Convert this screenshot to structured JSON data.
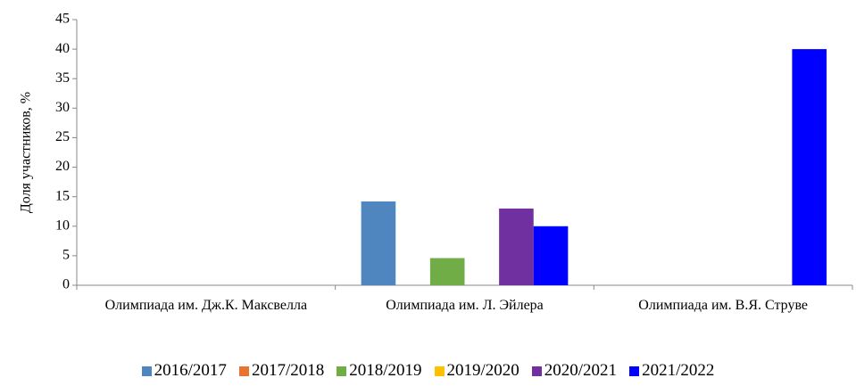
{
  "chart_data": {
    "type": "bar",
    "y_label": "Доля участников, %",
    "categories": [
      "Олимпиада им. Дж.К. Максвелла",
      "Олимпиада им. Л. Эйлера",
      "Олимпиада им. В.Я. Струве"
    ],
    "series": [
      {
        "name": "2016/2017",
        "color": "#4f86c0",
        "values": [
          0,
          14.2,
          0
        ]
      },
      {
        "name": "2017/2018",
        "color": "#e8742f",
        "values": [
          0,
          0,
          0
        ]
      },
      {
        "name": "2018/2019",
        "color": "#70ad47",
        "values": [
          0,
          4.6,
          0
        ]
      },
      {
        "name": "2019/2020",
        "color": "#ffc000",
        "values": [
          0,
          0,
          0
        ]
      },
      {
        "name": "2020/2021",
        "color": "#7030a0",
        "values": [
          0,
          13,
          0
        ]
      },
      {
        "name": "2021/2022",
        "color": "#0000ff",
        "values": [
          0,
          10,
          40
        ]
      }
    ],
    "ylim": [
      0,
      45
    ],
    "yticks": [
      0,
      5,
      10,
      15,
      20,
      25,
      30,
      35,
      40,
      45
    ],
    "grid": false,
    "legend": "bottom"
  }
}
